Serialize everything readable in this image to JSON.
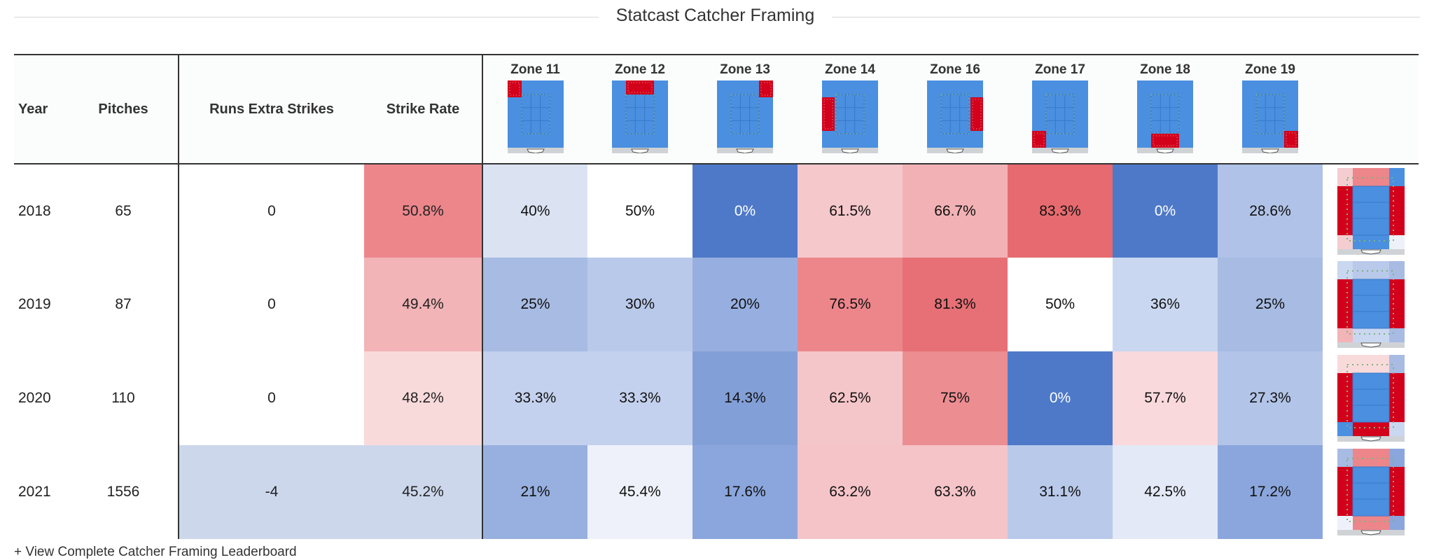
{
  "title": "Statcast Catcher Framing",
  "headers": {
    "year": "Year",
    "pitches": "Pitches",
    "runs": "Runs Extra Strikes",
    "strike_rate": "Strike Rate",
    "zones": [
      "Zone 11",
      "Zone 12",
      "Zone 13",
      "Zone 14",
      "Zone 16",
      "Zone 17",
      "Zone 18",
      "Zone 19"
    ]
  },
  "rows": [
    {
      "year": "2018",
      "pitches": "65",
      "runs": "0",
      "strike_rate": "50.8%",
      "zones": [
        "40%",
        "50%",
        "0%",
        "61.5%",
        "66.7%",
        "83.3%",
        "0%",
        "28.6%"
      ]
    },
    {
      "year": "2019",
      "pitches": "87",
      "runs": "0",
      "strike_rate": "49.4%",
      "zones": [
        "25%",
        "30%",
        "20%",
        "76.5%",
        "81.3%",
        "50%",
        "36%",
        "25%"
      ]
    },
    {
      "year": "2020",
      "pitches": "110",
      "runs": "0",
      "strike_rate": "48.2%",
      "zones": [
        "33.3%",
        "33.3%",
        "14.3%",
        "62.5%",
        "75%",
        "0%",
        "57.7%",
        "27.3%"
      ]
    },
    {
      "year": "2021",
      "pitches": "1556",
      "runs": "-4",
      "strike_rate": "45.2%",
      "zones": [
        "21%",
        "45.4%",
        "17.6%",
        "63.2%",
        "63.3%",
        "31.1%",
        "42.5%",
        "17.2%"
      ]
    }
  ],
  "colors": {
    "rows": [
      {
        "runs": "#ffffff",
        "strike_rate": "#ec868b",
        "zones": [
          "#dbe3f3",
          "#ffffff",
          "#4e79c8",
          "#f5c8cb",
          "#f2b2b5",
          "#e66a6f",
          "#4e79c8",
          "#b0c2e7"
        ],
        "zone_text": [
          "#111",
          "#111",
          "#ffffff",
          "#111",
          "#111",
          "#111",
          "#ffffff",
          "#111"
        ]
      },
      {
        "runs": "#ffffff",
        "strike_rate": "#f2b4b7",
        "zones": [
          "#a7bbe3",
          "#b9c9ea",
          "#97afe0",
          "#ec868b",
          "#e67075",
          "#ffffff",
          "#cad7f0",
          "#a7bbe3"
        ],
        "zone_text": [
          "#111",
          "#111",
          "#111",
          "#111",
          "#111",
          "#111",
          "#111",
          "#111"
        ]
      },
      {
        "runs": "#ffffff",
        "strike_rate": "#f9dadb",
        "zones": [
          "#c4d1ee",
          "#c4d1ee",
          "#839fd8",
          "#f5c6c9",
          "#ec8d92",
          "#4e79c8",
          "#f9d9dc",
          "#b2c4e8"
        ],
        "zone_text": [
          "#111",
          "#111",
          "#111",
          "#111",
          "#111",
          "#ffffff",
          "#111",
          "#111"
        ]
      },
      {
        "runs": "#ccd7ec",
        "strike_rate": "#ccd7ec",
        "year_pitches": "#ffffff",
        "zones": [
          "#98b0df",
          "#eef1fa",
          "#8ba6dc",
          "#f5c4c8",
          "#f5c4c8",
          "#b9c9ea",
          "#e3e9f6",
          "#8ba6dc"
        ],
        "zone_text": [
          "#111",
          "#111",
          "#111",
          "#111",
          "#111",
          "#111",
          "#111",
          "#111"
        ]
      }
    ],
    "zone_blue": "#4a8fe0",
    "zone_red": "#d3001c",
    "plate": "#cfd3d6"
  },
  "footer": {
    "link_text": "+ View Complete Catcher Framing Leaderboard"
  }
}
